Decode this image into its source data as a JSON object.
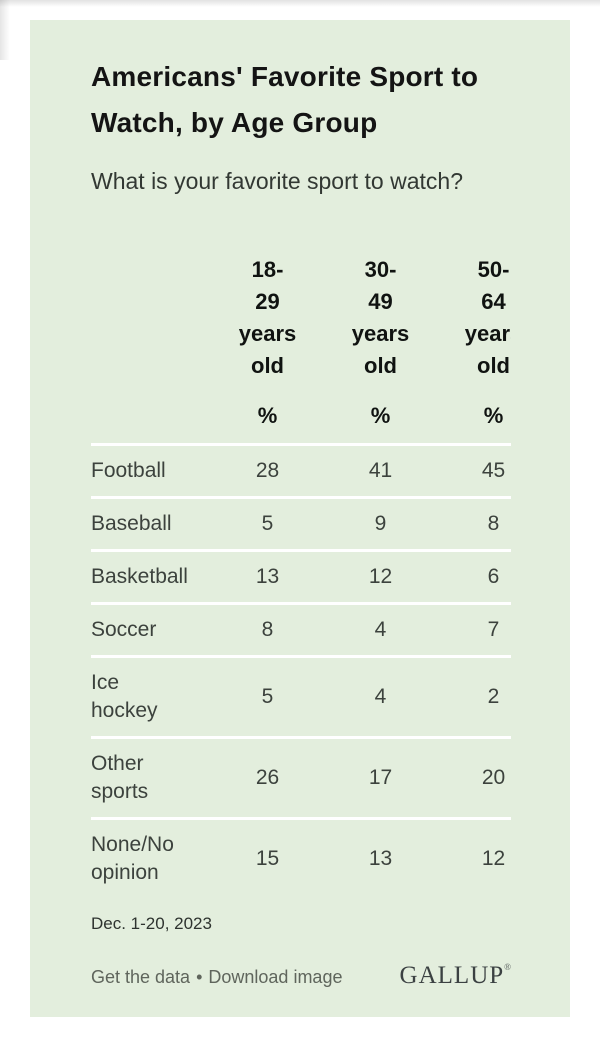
{
  "colors": {
    "card_background": "#e3eedd",
    "divider": "#ffffff",
    "title_text": "#141414",
    "body_text": "#3c423d",
    "link_text": "#5f655c",
    "brand_text": "#3b4142"
  },
  "header": {
    "title": "Americans' Favorite Sport to Watch, by Age Group",
    "subtitle": "What is your favorite sport to watch?"
  },
  "chart_data": {
    "type": "table",
    "title": "Americans' Favorite Sport to Watch, by Age Group",
    "subtitle": "What is your favorite sport to watch?",
    "unit": "%",
    "columns": [
      "18-29 years old",
      "30-49 years old",
      "50-64 years old"
    ],
    "col_header_lines": [
      "18-\n29\nyears\nold",
      "30-\n49\nyears\nold",
      "50-\n64\nyears\nold"
    ],
    "unit_row": [
      "%",
      "%",
      "%"
    ],
    "rows": [
      {
        "label": "Football",
        "label_lines": "Football",
        "values": [
          28,
          41,
          45
        ]
      },
      {
        "label": "Baseball",
        "label_lines": "Baseball",
        "values": [
          5,
          9,
          8
        ]
      },
      {
        "label": "Basketball",
        "label_lines": "Basketball",
        "values": [
          13,
          12,
          6
        ]
      },
      {
        "label": "Soccer",
        "label_lines": "Soccer",
        "values": [
          8,
          4,
          7
        ]
      },
      {
        "label": "Ice hockey",
        "label_lines": "Ice\nhockey",
        "values": [
          5,
          4,
          2
        ]
      },
      {
        "label": "Other sports",
        "label_lines": "Other\nsports",
        "values": [
          26,
          17,
          20
        ]
      },
      {
        "label": "None/No opinion",
        "label_lines": "None/No\nopinion",
        "values": [
          15,
          13,
          12
        ]
      }
    ],
    "source_date": "Dec. 1-20, 2023",
    "layout": {
      "grid": false,
      "value_alignment": "center",
      "row_dividers": "white"
    }
  },
  "footer": {
    "date": "Dec. 1-20, 2023",
    "get_data_label": "Get the data",
    "separator": "•",
    "download_label": "Download image",
    "brand_name": "GALLUP",
    "brand_mark": "®"
  }
}
